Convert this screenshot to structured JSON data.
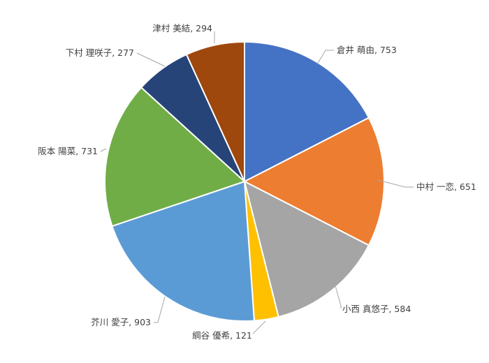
{
  "chart_data": {
    "type": "pie",
    "title": "",
    "legend": "none",
    "slices": [
      {
        "label": "倉井 萌由",
        "value": 753,
        "color": "#4472C4"
      },
      {
        "label": "中村 一恋",
        "value": 651,
        "color": "#ED7D31"
      },
      {
        "label": "小西 真悠子",
        "value": 584,
        "color": "#A5A5A5"
      },
      {
        "label": "綱谷 優希",
        "value": 121,
        "color": "#FFC000"
      },
      {
        "label": "芥川 愛子",
        "value": 903,
        "color": "#5B9BD5"
      },
      {
        "label": "阪本 陽菜",
        "value": 731,
        "color": "#70AD47"
      },
      {
        "label": "下村 理咲子",
        "value": 277,
        "color": "#264478"
      },
      {
        "label": "津村 美結",
        "value": 294,
        "color": "#9E480E"
      }
    ]
  }
}
